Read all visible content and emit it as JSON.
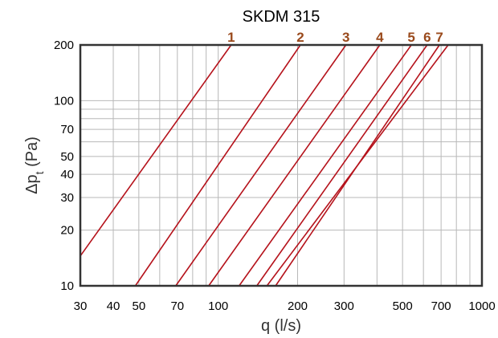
{
  "chart_data": {
    "type": "line",
    "title": "SKDM 315",
    "xlabel": "q (l/s)",
    "ylabel_main": "Δp",
    "ylabel_sub": "t",
    "ylabel_unit": " (Pa)",
    "xscale": "log",
    "yscale": "log",
    "xlim": [
      30,
      1000
    ],
    "ylim": [
      10,
      200
    ],
    "grid": true,
    "x_ticks": [
      {
        "v": 30,
        "label": "30"
      },
      {
        "v": 40,
        "label": "40"
      },
      {
        "v": 50,
        "label": "50"
      },
      {
        "v": 70,
        "label": "70"
      },
      {
        "v": 100,
        "label": "100"
      },
      {
        "v": 200,
        "label": "200"
      },
      {
        "v": 300,
        "label": "300"
      },
      {
        "v": 500,
        "label": "500"
      },
      {
        "v": 700,
        "label": "700"
      },
      {
        "v": 1000,
        "label": "1000"
      }
    ],
    "y_ticks": [
      {
        "v": 10,
        "label": "10"
      },
      {
        "v": 20,
        "label": "20"
      },
      {
        "v": 30,
        "label": "30"
      },
      {
        "v": 40,
        "label": "40"
      },
      {
        "v": 50,
        "label": "50"
      },
      {
        "v": 70,
        "label": "70"
      },
      {
        "v": 100,
        "label": "100"
      },
      {
        "v": 200,
        "label": "200"
      }
    ],
    "x_grid": [
      30,
      40,
      50,
      60,
      70,
      80,
      90,
      100,
      200,
      300,
      400,
      500,
      600,
      700,
      800,
      900,
      1000
    ],
    "y_grid": [
      10,
      20,
      30,
      40,
      50,
      60,
      70,
      80,
      90,
      100,
      200
    ],
    "series": [
      {
        "name": "1",
        "points": [
          [
            30,
            14.5
          ],
          [
            112,
            200
          ]
        ]
      },
      {
        "name": "2",
        "points": [
          [
            48.5,
            10
          ],
          [
            205,
            200
          ]
        ]
      },
      {
        "name": "3",
        "points": [
          [
            69,
            10
          ],
          [
            305,
            200
          ]
        ]
      },
      {
        "name": "4",
        "points": [
          [
            92,
            10
          ],
          [
            410,
            200
          ]
        ]
      },
      {
        "name": "5",
        "points": [
          [
            120,
            10
          ],
          [
            540,
            200
          ]
        ]
      },
      {
        "name": "6",
        "points": [
          [
            140,
            10
          ],
          [
            620,
            200
          ]
        ]
      },
      {
        "name": "7",
        "points": [
          [
            165,
            10
          ],
          [
            690,
            200
          ]
        ]
      },
      {
        "name": "",
        "points": [
          [
            153,
            10
          ],
          [
            745,
            200
          ]
        ]
      }
    ],
    "line_color": "#b5121b",
    "label_color": "#9a4a1c"
  }
}
